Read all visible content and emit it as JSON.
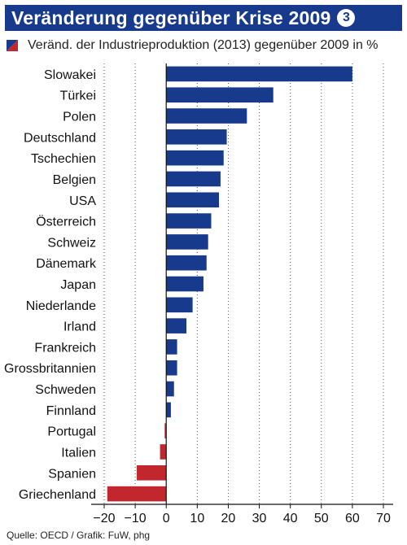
{
  "header": {
    "title": "Veränderung gegenüber Krise 2009",
    "badge": "3"
  },
  "legend": {
    "text": "Veränd. der Industrieproduktion (2013) gegenüber 2009 in %"
  },
  "footer": {
    "source": "Quelle: OECD / Grafik: FuW, phg"
  },
  "colors": {
    "header_bg": "#173a8c",
    "positive": "#173a8c",
    "negative": "#c3272e"
  },
  "chart_data": {
    "type": "bar",
    "orientation": "horizontal",
    "categories": [
      "Slowakei",
      "Türkei",
      "Polen",
      "Deutschland",
      "Tschechien",
      "Belgien",
      "USA",
      "Österreich",
      "Schweiz",
      "Dänemark",
      "Japan",
      "Niederlande",
      "Irland",
      "Frankreich",
      "Grossbritannien",
      "Schweden",
      "Finnland",
      "Portugal",
      "Italien",
      "Spanien",
      "Griechenland"
    ],
    "values": [
      60,
      34.5,
      26,
      19.5,
      18.5,
      17.5,
      17,
      14.5,
      13.5,
      13,
      12,
      8.5,
      6.5,
      3.5,
      3.5,
      2.5,
      1.5,
      -0.5,
      -2,
      -9.5,
      -19
    ],
    "xlim": [
      -20,
      70
    ],
    "xticks": [
      -20,
      -10,
      0,
      10,
      20,
      30,
      40,
      50,
      60,
      70
    ],
    "xticklabels": [
      "−20",
      "−10",
      "0",
      "10",
      "20",
      "30",
      "40",
      "50",
      "60",
      "70"
    ],
    "grid": "vertical dotted",
    "legend": "top-left"
  }
}
